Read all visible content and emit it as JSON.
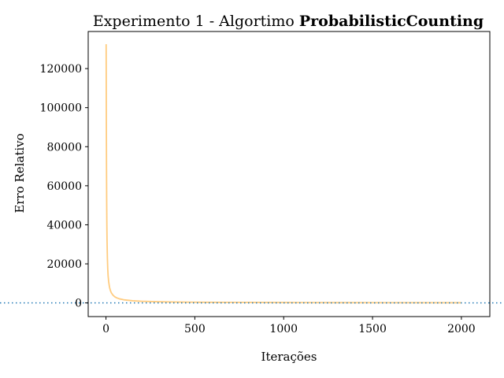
{
  "chart_data": {
    "type": "line",
    "title_prefix": "Experimento 1 - Algortimo ",
    "title_bold": "ProbabilisticCounting",
    "xlabel": "Iterações",
    "ylabel": "Erro Relativo",
    "xlim": [
      -100,
      2160
    ],
    "ylim": [
      -7000,
      139000
    ],
    "xticks": [
      0,
      500,
      1000,
      1500,
      2000
    ],
    "yticks": [
      0,
      20000,
      40000,
      60000,
      80000,
      100000,
      120000
    ],
    "grid": false,
    "reference_line": {
      "y": 0,
      "style": "dotted",
      "color": "#1f77b4"
    },
    "series": [
      {
        "color": "#ffcc80",
        "points": [
          [
            1,
            132500
          ],
          [
            2,
            95000
          ],
          [
            3,
            70000
          ],
          [
            4,
            52000
          ],
          [
            5,
            40000
          ],
          [
            6,
            32000
          ],
          [
            8,
            23000
          ],
          [
            10,
            17500
          ],
          [
            12,
            14000
          ],
          [
            15,
            11000
          ],
          [
            20,
            8000
          ],
          [
            25,
            6300
          ],
          [
            30,
            5200
          ],
          [
            40,
            3900
          ],
          [
            50,
            3100
          ],
          [
            60,
            2600
          ],
          [
            75,
            2100
          ],
          [
            100,
            1600
          ],
          [
            150,
            1100
          ],
          [
            200,
            850
          ],
          [
            300,
            580
          ],
          [
            400,
            440
          ],
          [
            500,
            350
          ],
          [
            700,
            260
          ],
          [
            1000,
            180
          ],
          [
            1300,
            140
          ],
          [
            1600,
            115
          ],
          [
            2000,
            90
          ]
        ]
      }
    ]
  }
}
